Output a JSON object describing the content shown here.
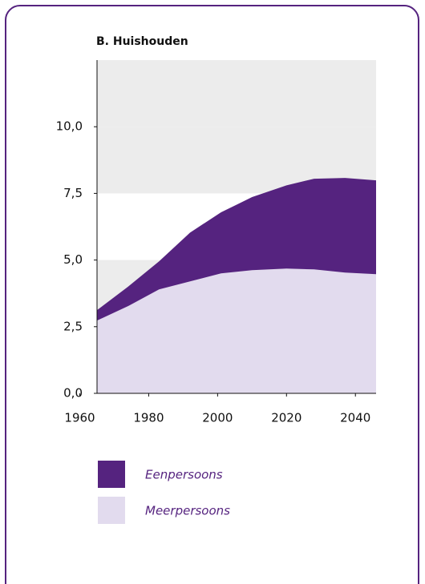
{
  "chart_data": {
    "type": "stacked_area",
    "title": "B. Huishouden",
    "x": [
      1965,
      1974,
      1983,
      1992,
      2001,
      2010,
      2020,
      2028,
      2037,
      2046
    ],
    "series": [
      {
        "name": "Eenpersoons",
        "color": "#55237f",
        "values": [
          0.39,
          0.73,
          1.05,
          1.83,
          2.29,
          2.74,
          3.12,
          3.4,
          3.55,
          3.52
        ]
      },
      {
        "name": "Meerpersoons",
        "color": "#e2dbee",
        "values": [
          2.73,
          3.27,
          3.9,
          4.2,
          4.5,
          4.62,
          4.68,
          4.65,
          4.53,
          4.47
        ]
      }
    ],
    "xlim": [
      1965,
      2046
    ],
    "xticks": [
      1960,
      1980,
      2000,
      2020,
      2040
    ],
    "ylim": [
      0,
      12.5
    ],
    "yticks": [
      {
        "value": 0,
        "label": "0,0"
      },
      {
        "value": 2.5,
        "label": "2,5"
      },
      {
        "value": 5,
        "label": "5,0"
      },
      {
        "value": 7.5,
        "label": "7,5"
      },
      {
        "value": 10,
        "label": "10,0"
      }
    ],
    "grid_bands": true
  }
}
